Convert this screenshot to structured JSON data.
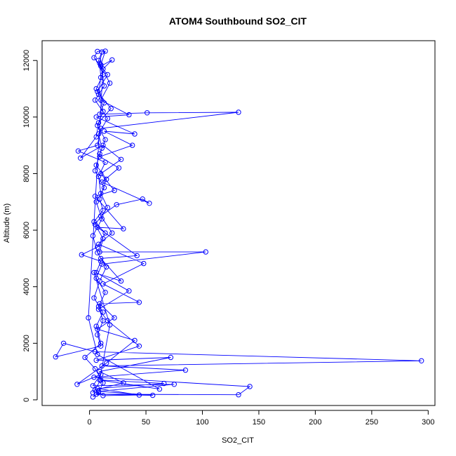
{
  "chart_data": {
    "type": "line",
    "title": "ATOM4 Southbound SO2_CIT",
    "xlabel": "SO2_CIT",
    "ylabel": "Altitude (m)",
    "xlim": [
      -42,
      306
    ],
    "ylim": [
      -200,
      12700
    ],
    "xticks": [
      0,
      50,
      100,
      150,
      200,
      250,
      300
    ],
    "yticks": [
      0,
      2000,
      4000,
      6000,
      8000,
      10000,
      12000
    ],
    "grid": false,
    "legend": "none",
    "color": "#0000ff",
    "series": [
      {
        "markers": "open-circle",
        "points": [
          [
            3,
            100
          ],
          [
            8,
            250
          ],
          [
            12,
            600
          ],
          [
            5,
            1100
          ],
          [
            -4,
            1500
          ],
          [
            10,
            2000
          ],
          [
            6,
            2600
          ],
          [
            12,
            3100
          ],
          [
            4,
            3600
          ],
          [
            9,
            4200
          ],
          [
            15,
            4700
          ],
          [
            7,
            5200
          ],
          [
            3,
            5800
          ],
          [
            11,
            6400
          ],
          [
            6,
            7000
          ],
          [
            13,
            7500
          ],
          [
            5,
            8100
          ],
          [
            9,
            8700
          ],
          [
            14,
            9200
          ],
          [
            7,
            9700
          ],
          [
            12,
            10200
          ],
          [
            8,
            10800
          ],
          [
            10,
            11400
          ],
          [
            9,
            11900
          ],
          [
            11,
            12300
          ],
          [
            8,
            12000
          ],
          [
            12,
            11500
          ],
          [
            6,
            11000
          ],
          [
            13,
            10500
          ],
          [
            9,
            10100
          ],
          [
            51,
            10150
          ],
          [
            132,
            10170
          ],
          [
            10,
            9600
          ],
          [
            7,
            9000
          ],
          [
            -10,
            8800
          ],
          [
            14,
            8400
          ],
          [
            8,
            7900
          ],
          [
            10,
            7300
          ],
          [
            16,
            6800
          ],
          [
            5,
            6200
          ],
          [
            12,
            5700
          ],
          [
            9,
            5230
          ],
          [
            103,
            5230
          ],
          [
            11,
            4800
          ],
          [
            6,
            4300
          ],
          [
            14,
            3800
          ],
          [
            8,
            3300
          ],
          [
            12,
            2800
          ],
          [
            7,
            2300
          ],
          [
            10,
            1900
          ],
          [
            -30,
            1520
          ],
          [
            -23,
            2000
          ],
          [
            5,
            1700
          ],
          [
            294,
            1380
          ],
          [
            11,
            1200
          ],
          [
            85,
            1050
          ],
          [
            4,
            800
          ],
          [
            142,
            470
          ],
          [
            132,
            180
          ],
          [
            6,
            200
          ],
          [
            56,
            160
          ],
          [
            8,
            300
          ],
          [
            75,
            550
          ],
          [
            3,
            500
          ],
          [
            10,
            900
          ],
          [
            -11,
            550
          ],
          [
            15,
            1300
          ],
          [
            40,
            2100
          ],
          [
            7,
            2500
          ],
          [
            22,
            2900
          ],
          [
            9,
            3400
          ],
          [
            44,
            3450
          ],
          [
            12,
            4100
          ],
          [
            48,
            4820
          ],
          [
            8,
            5500
          ],
          [
            20,
            5900
          ],
          [
            10,
            6500
          ],
          [
            24,
            6900
          ],
          [
            47,
            7100
          ],
          [
            53,
            6950
          ],
          [
            11,
            7700
          ],
          [
            26,
            8200
          ],
          [
            9,
            8600
          ],
          [
            38,
            9000
          ],
          [
            13,
            9500
          ],
          [
            40,
            9400
          ],
          [
            6,
            10000
          ],
          [
            35,
            10080
          ],
          [
            10,
            10600
          ],
          [
            18,
            11200
          ],
          [
            10,
            11800
          ],
          [
            20,
            12020
          ],
          [
            12,
            11700
          ],
          [
            -1,
            2900
          ],
          [
            7,
            1600
          ],
          [
            62,
            380
          ],
          [
            9,
            700
          ],
          [
            18,
            2650
          ],
          [
            4,
            4500
          ],
          [
            28,
            4200
          ],
          [
            10,
            5000
          ],
          [
            42,
            5100
          ],
          [
            7,
            6100
          ],
          [
            30,
            6050
          ],
          [
            5,
            7200
          ],
          [
            22,
            7400
          ],
          [
            10,
            8000
          ],
          [
            28,
            8500
          ],
          [
            12,
            9000
          ],
          [
            -8,
            8550
          ],
          [
            6,
            9300
          ],
          [
            8,
            9800
          ],
          [
            19,
            10300
          ],
          [
            7,
            10900
          ],
          [
            16,
            11500
          ],
          [
            4,
            12100
          ],
          [
            7,
            12320
          ],
          [
            14,
            12330
          ],
          [
            10,
            11850
          ],
          [
            13,
            11100
          ],
          [
            5,
            10600
          ],
          [
            16,
            9950
          ],
          [
            8,
            9400
          ],
          [
            11,
            8900
          ],
          [
            6,
            8300
          ],
          [
            15,
            7800
          ],
          [
            9,
            7100
          ],
          [
            12,
            6700
          ],
          [
            4,
            6300
          ],
          [
            14,
            5900
          ],
          [
            7,
            5400
          ],
          [
            -7,
            5130
          ],
          [
            10,
            4900
          ],
          [
            6,
            4500
          ],
          [
            35,
            3850
          ],
          [
            8,
            3200
          ],
          [
            16,
            2800
          ],
          [
            44,
            1900
          ],
          [
            6,
            1400
          ],
          [
            72,
            1500
          ],
          [
            9,
            1000
          ],
          [
            30,
            600
          ],
          [
            5,
            350
          ],
          [
            12,
            150
          ],
          [
            44,
            170
          ],
          [
            7,
            400
          ],
          [
            66,
            580
          ],
          [
            10,
            700
          ],
          [
            3,
            250
          ]
        ]
      }
    ]
  }
}
